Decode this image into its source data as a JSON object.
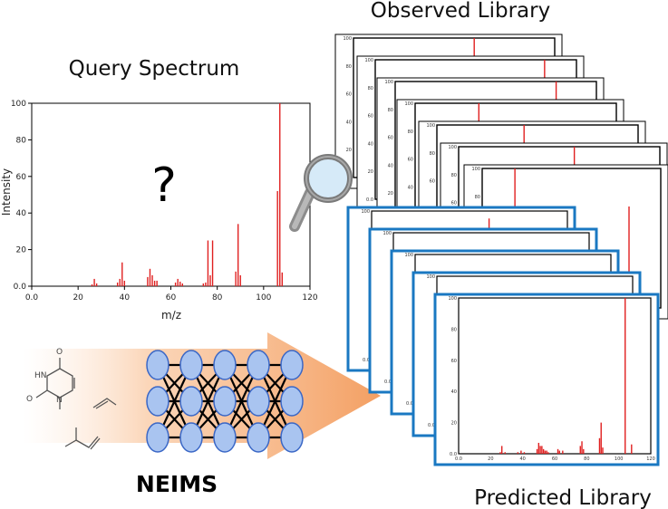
{
  "labels": {
    "observed_library": "Observed Library",
    "query_spectrum": "Query Spectrum",
    "predicted_library": "Predicted Library",
    "neims": "NEIMS",
    "unknown": "?"
  },
  "molecule": {
    "uracil_atoms": [
      "O",
      "HN",
      "N",
      "O"
    ]
  },
  "colors": {
    "peak_red": "#e02020",
    "predicted_frame": "#1a78c2",
    "neuron_fill": "#a9c4f0",
    "neuron_stroke": "#3a67c6",
    "arrow_orange": "#f5a36a",
    "magnifier_glass": "#d6eaf8"
  },
  "network": {
    "layers": [
      3,
      3,
      3,
      3,
      3
    ]
  },
  "chart_data": [
    {
      "type": "bar",
      "name": "query-spectrum",
      "title": "",
      "xlabel": "m/z",
      "ylabel": "Intensity",
      "xlim": [
        0,
        120
      ],
      "ylim": [
        0,
        100
      ],
      "xticks": [
        "0.0",
        "20",
        "40",
        "60",
        "80",
        "100",
        "120"
      ],
      "yticks": [
        "0.0",
        "20",
        "40",
        "60",
        "80",
        "100"
      ],
      "peaks": [
        {
          "x": 26,
          "y": 1
        },
        {
          "x": 27,
          "y": 4
        },
        {
          "x": 28,
          "y": 1.5
        },
        {
          "x": 37,
          "y": 2
        },
        {
          "x": 38,
          "y": 4
        },
        {
          "x": 39,
          "y": 13
        },
        {
          "x": 40,
          "y": 3
        },
        {
          "x": 50,
          "y": 5
        },
        {
          "x": 51,
          "y": 9.5
        },
        {
          "x": 52,
          "y": 6
        },
        {
          "x": 53,
          "y": 3
        },
        {
          "x": 54,
          "y": 3
        },
        {
          "x": 62,
          "y": 2
        },
        {
          "x": 63,
          "y": 4
        },
        {
          "x": 64,
          "y": 2.5
        },
        {
          "x": 65,
          "y": 1.5
        },
        {
          "x": 74,
          "y": 1.5
        },
        {
          "x": 75,
          "y": 2
        },
        {
          "x": 76,
          "y": 25
        },
        {
          "x": 77,
          "y": 6
        },
        {
          "x": 78,
          "y": 25
        },
        {
          "x": 88,
          "y": 8
        },
        {
          "x": 89,
          "y": 34
        },
        {
          "x": 90,
          "y": 6
        },
        {
          "x": 106,
          "y": 52
        },
        {
          "x": 107,
          "y": 100
        },
        {
          "x": 108,
          "y": 7.5
        }
      ]
    },
    {
      "type": "bar",
      "name": "predicted-spectrum",
      "title": "",
      "xlabel": "",
      "ylabel": "",
      "xlim": [
        0,
        120
      ],
      "ylim": [
        0,
        100
      ],
      "xticks": [
        "0.0",
        "20",
        "40",
        "60",
        "80",
        "100",
        "120"
      ],
      "yticks": [
        "0.0",
        "20",
        "40",
        "60",
        "80",
        "100"
      ],
      "peaks": [
        {
          "x": 26,
          "y": 1
        },
        {
          "x": 27,
          "y": 5
        },
        {
          "x": 29,
          "y": 1
        },
        {
          "x": 37,
          "y": 1
        },
        {
          "x": 39,
          "y": 2
        },
        {
          "x": 41,
          "y": 1
        },
        {
          "x": 49,
          "y": 3
        },
        {
          "x": 50,
          "y": 7
        },
        {
          "x": 51,
          "y": 5
        },
        {
          "x": 52,
          "y": 5
        },
        {
          "x": 53,
          "y": 3
        },
        {
          "x": 54,
          "y": 2
        },
        {
          "x": 55,
          "y": 2
        },
        {
          "x": 56,
          "y": 1
        },
        {
          "x": 62,
          "y": 3
        },
        {
          "x": 63,
          "y": 2
        },
        {
          "x": 65,
          "y": 2
        },
        {
          "x": 76,
          "y": 5
        },
        {
          "x": 77,
          "y": 8
        },
        {
          "x": 78,
          "y": 3
        },
        {
          "x": 88,
          "y": 10
        },
        {
          "x": 89,
          "y": 20
        },
        {
          "x": 90,
          "y": 4
        },
        {
          "x": 104,
          "y": 100
        },
        {
          "x": 108,
          "y": 6
        }
      ]
    }
  ]
}
